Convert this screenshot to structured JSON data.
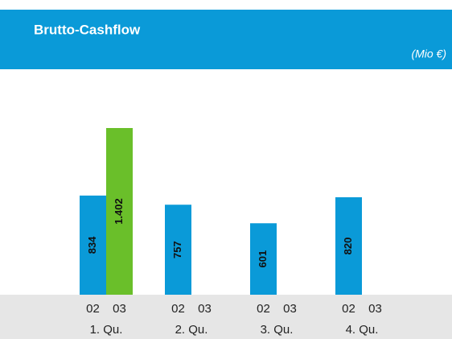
{
  "chart_data": {
    "type": "bar",
    "title": "Brutto-Cashflow",
    "subtitle": "(Mio €)",
    "categories": [
      "1. Qu.",
      "2. Qu.",
      "3. Qu.",
      "4. Qu."
    ],
    "series": [
      {
        "name": "02",
        "color": "#0a9ad8",
        "values": [
          834,
          757,
          601,
          820
        ]
      },
      {
        "name": "03",
        "color": "#6abf2a",
        "values": [
          1402,
          null,
          null,
          null
        ],
        "value_labels": [
          "1.402",
          null,
          null,
          null
        ]
      }
    ]
  }
}
